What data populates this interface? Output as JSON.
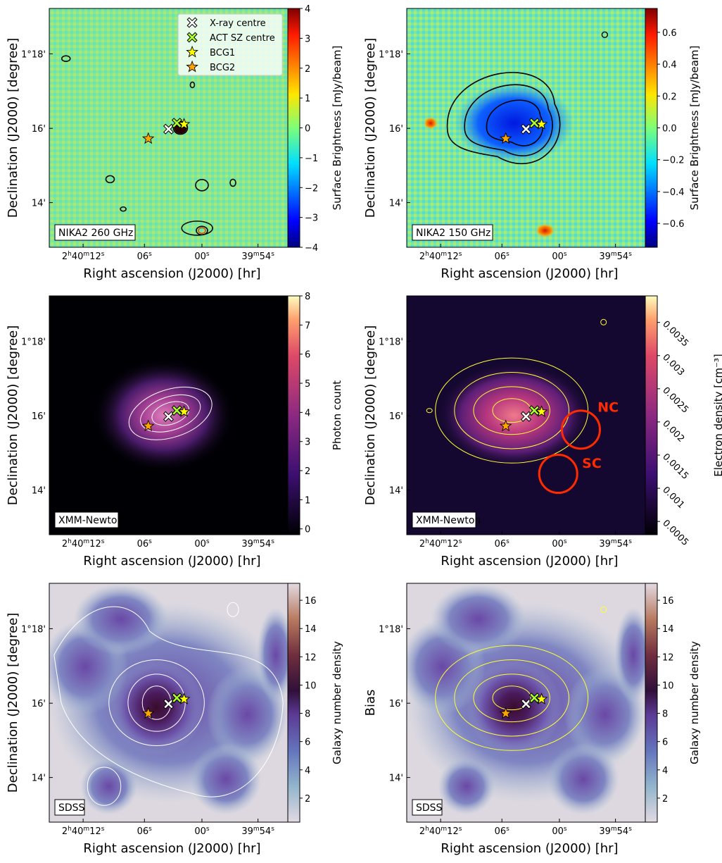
{
  "figure": {
    "title": "",
    "axis_titles": {
      "x": "Right ascension (J2000) [hr]",
      "y": "Declination (J2000) [degree]",
      "y_alt": "Bias"
    },
    "x_ticks": [
      "2h40m12s",
      "06s",
      "00s",
      "39m54s"
    ],
    "y_ticks": [
      "1°18'",
      "16'",
      "14'"
    ],
    "legend": [
      {
        "label": "X-ray centre",
        "marker": "x-cross",
        "color": "#ffffff"
      },
      {
        "label": "ACT SZ centre",
        "marker": "x-cross",
        "color": "#adff2f"
      },
      {
        "label": "BCG1",
        "marker": "star",
        "color": "#ffff00"
      },
      {
        "label": "BCG2",
        "marker": "star",
        "color": "#ffa500"
      }
    ]
  },
  "chart_data": [
    {
      "type": "heatmap",
      "panel": "NIKA2 260 GHz",
      "label": "NIKA2 260 GHz",
      "xlabel": "Right ascension (J2000) [hr]",
      "ylabel": "Declination (J2000) [degree]",
      "colormap": "jet",
      "colorbar_label": "Surface Brightness [mJy/beam]",
      "colorbar_range": [
        -4,
        4
      ],
      "colorbar_ticks": [
        "4",
        "3",
        "2",
        "1",
        "0",
        "−1",
        "−2",
        "−3",
        "−4"
      ],
      "contour_color": "#000000",
      "has_legend": true
    },
    {
      "type": "heatmap",
      "panel": "NIKA2 150 GHz",
      "label": "NIKA2 150 GHz",
      "xlabel": "Right ascension (J2000) [hr]",
      "ylabel": "Declination (J2000) [degree]",
      "colormap": "jet",
      "colorbar_label": "Surface Brightness [mJy/beam]",
      "colorbar_range": [
        -0.75,
        0.75
      ],
      "colorbar_ticks": [
        "0.6",
        "0.4",
        "0.2",
        "0.0",
        "−0.2",
        "−0.4",
        "−0.6"
      ],
      "contour_color": "#000000"
    },
    {
      "type": "heatmap",
      "panel": "XMM-Newton counts",
      "label": "XMM-Newton",
      "xlabel": "Right ascension (J2000) [hr]",
      "ylabel": "Declination (J2000) [degree]",
      "colormap": "magma",
      "colorbar_label": "Photon count",
      "colorbar_range": [
        -0.2,
        8
      ],
      "colorbar_ticks": [
        "8",
        "7",
        "6",
        "5",
        "4",
        "3",
        "2",
        "1",
        "0"
      ],
      "contour_color": "#ffffff"
    },
    {
      "type": "heatmap",
      "panel": "XMM-Newton density",
      "label": "XMM-Newton",
      "xlabel": "Right ascension (J2000) [hr]",
      "ylabel": "Declination (J2000) [degree]",
      "colormap": "magma",
      "colorbar_label": "Electron density [cm⁻³]",
      "colorbar_range": [
        0.0003,
        0.0039
      ],
      "colorbar_ticks": [
        "0.0035",
        "0.003",
        "0.0025",
        "0.002",
        "0.0015",
        "0.001",
        "0.0005"
      ],
      "contour_color": "#ffff33",
      "annotations": [
        {
          "text": "NC",
          "color": "#ff2a00"
        },
        {
          "text": "SC",
          "color": "#ff2a00"
        }
      ]
    },
    {
      "type": "heatmap",
      "panel": "SDSS left",
      "label": "SDSS",
      "xlabel": "Right ascension (J2000) [hr]",
      "ylabel": "Declination (J2000) [degree]",
      "colormap": "twilight",
      "colorbar_label": "Galaxy number density",
      "colorbar_range": [
        0.3,
        17.2
      ],
      "colorbar_ticks": [
        "16",
        "14",
        "12",
        "10",
        "8",
        "6",
        "4",
        "2"
      ],
      "contour_color": "#ffffff"
    },
    {
      "type": "heatmap",
      "panel": "SDSS right",
      "label": "SDSS",
      "xlabel": "Right ascension (J2000) [hr]",
      "ylabel": "Bias",
      "colormap": "twilight",
      "colorbar_label": "Galaxy number density",
      "colorbar_range": [
        0.3,
        17.2
      ],
      "colorbar_ticks": [
        "16",
        "14",
        "12",
        "10",
        "8",
        "6",
        "4",
        "2"
      ],
      "contour_color": "#ffff33"
    }
  ]
}
